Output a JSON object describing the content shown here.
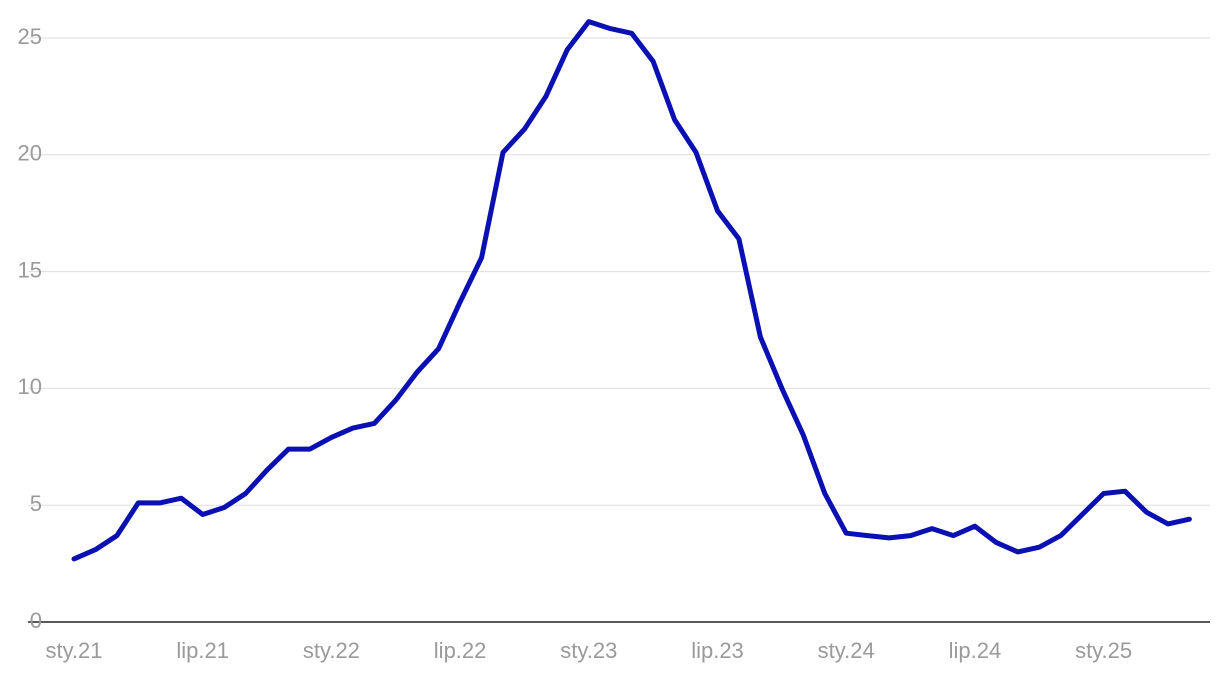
{
  "chart_data": {
    "type": "line",
    "categories": [
      "sty.21",
      null,
      null,
      null,
      null,
      null,
      "lip.21",
      null,
      null,
      null,
      null,
      null,
      "sty.22",
      null,
      null,
      null,
      null,
      null,
      "lip.22",
      null,
      null,
      null,
      null,
      null,
      "sty.23",
      null,
      null,
      null,
      null,
      null,
      "lip.23",
      null,
      null,
      null,
      null,
      null,
      "sty.24",
      null,
      null,
      null,
      null,
      null,
      "lip.24",
      null,
      null,
      null,
      null,
      null,
      "sty.25",
      null,
      null,
      null,
      null
    ],
    "values": [
      2.7,
      3.1,
      3.7,
      5.1,
      5.1,
      5.3,
      4.6,
      4.9,
      5.5,
      6.5,
      7.4,
      7.4,
      7.9,
      8.3,
      8.5,
      9.5,
      10.7,
      11.7,
      13.7,
      15.6,
      20.1,
      21.1,
      22.5,
      24.5,
      25.7,
      25.4,
      25.2,
      24.0,
      21.5,
      20.1,
      17.6,
      16.4,
      12.2,
      10.0,
      8.0,
      5.5,
      3.8,
      3.7,
      3.6,
      3.7,
      4.0,
      3.7,
      4.1,
      3.4,
      3.0,
      3.2,
      3.7,
      4.6,
      5.5,
      5.6,
      4.7,
      4.2,
      4.4
    ],
    "color": "#0a10b2",
    "ylim": [
      0,
      26
    ],
    "yticks": [
      0,
      5,
      10,
      15,
      20,
      25
    ],
    "grid": true
  }
}
